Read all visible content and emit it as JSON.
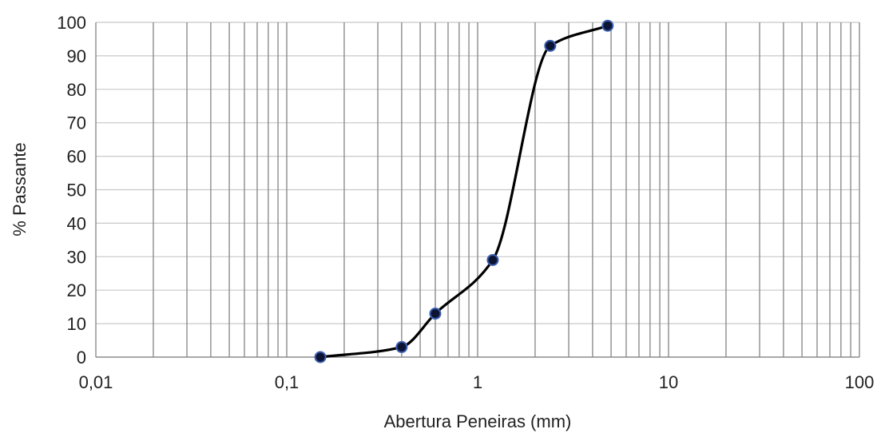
{
  "chart_data": {
    "type": "line",
    "title": "",
    "xlabel": "Abertura Peneiras (mm)",
    "ylabel": "% Passante",
    "x_scale": "log",
    "xlim": [
      0.01,
      100
    ],
    "ylim": [
      0,
      100
    ],
    "x_ticks": [
      0.01,
      0.1,
      1,
      10,
      100
    ],
    "x_tick_labels": [
      "0,01",
      "0,1",
      "1",
      "10",
      "100"
    ],
    "y_ticks": [
      0,
      10,
      20,
      30,
      40,
      50,
      60,
      70,
      80,
      90,
      100
    ],
    "y_tick_labels": [
      "0",
      "10",
      "20",
      "30",
      "40",
      "50",
      "60",
      "70",
      "80",
      "90",
      "100"
    ],
    "grid": true,
    "legend": "none",
    "series": [
      {
        "x": [
          0.15,
          0.4,
          0.6,
          1.2,
          2.4,
          4.8
        ],
        "y": [
          0,
          3,
          13,
          29,
          93,
          99
        ]
      }
    ],
    "colors": {
      "line": "#000000",
      "marker_fill": "#0d1433",
      "marker_edge": "#3a5fb0",
      "grid": "#8c8c8c",
      "axis": "#8c8c8c"
    }
  }
}
